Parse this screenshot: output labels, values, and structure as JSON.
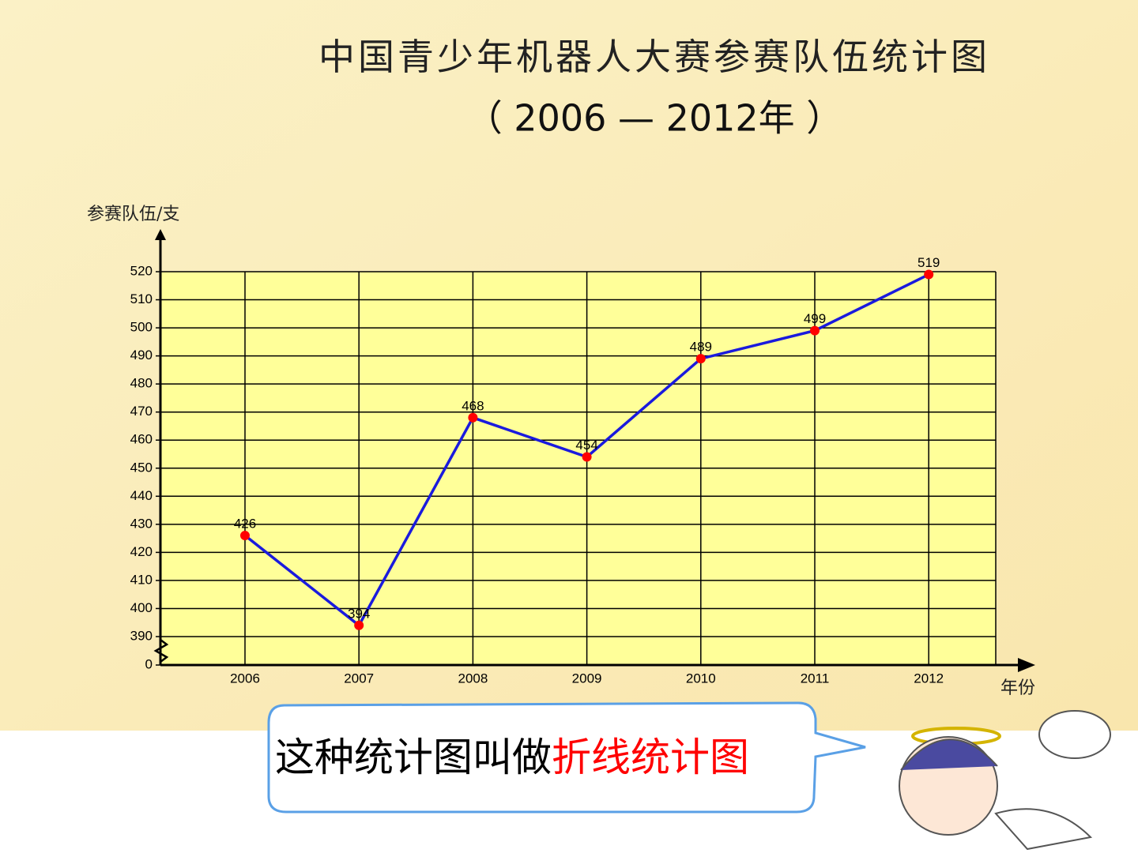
{
  "chart_data": {
    "type": "line",
    "title": "中国青少年机器人大赛参赛队伍统计图",
    "subtitle": "（ 2006 — 2012年 ）",
    "y_label": "参赛队伍/支",
    "x_label": "年份",
    "categories": [
      "2006",
      "2007",
      "2008",
      "2009",
      "2010",
      "2011",
      "2012"
    ],
    "values": [
      426,
      394,
      468,
      454,
      489,
      499,
      519
    ],
    "color": "#1a1add",
    "marker_color": "#ff0000",
    "ylim": [
      0,
      520
    ],
    "axis_break": [
      0,
      390
    ],
    "yticks": [
      0,
      390,
      400,
      410,
      420,
      430,
      440,
      450,
      460,
      470,
      480,
      490,
      500,
      510,
      520
    ],
    "grid": true
  },
  "callout": {
    "text": "这种统计图叫做",
    "highlight": "折线统计图"
  }
}
